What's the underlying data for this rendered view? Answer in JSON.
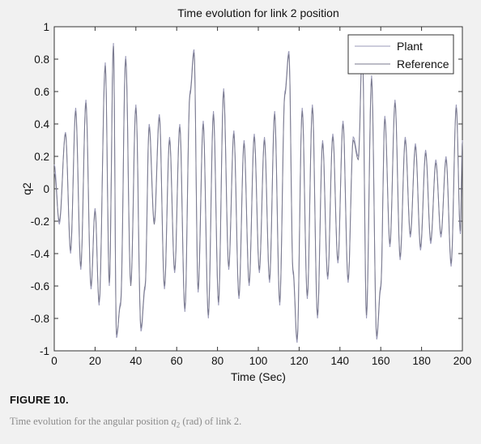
{
  "chart_data": {
    "type": "line",
    "title": "Time evolution for link 2 position",
    "xlabel": "Time (Sec)",
    "ylabel": "q2",
    "xlim": [
      0,
      200
    ],
    "ylim": [
      -1,
      1
    ],
    "xticks": [
      0,
      20,
      40,
      60,
      80,
      100,
      120,
      140,
      160,
      180,
      200
    ],
    "yticks": [
      -1,
      -0.8,
      -0.6,
      -0.4,
      -0.2,
      0,
      0.2,
      0.4,
      0.6,
      0.8,
      1
    ],
    "xtick_labels": [
      "0",
      "20",
      "40",
      "60",
      "80",
      "100",
      "120",
      "140",
      "160",
      "180",
      "200"
    ],
    "ytick_labels": [
      "-1",
      "-0.8",
      "-0.6",
      "-0.4",
      "-0.2",
      "0",
      "0.2",
      "0.4",
      "0.6",
      "0.8",
      "1"
    ],
    "grid": false,
    "legend_position": "top-right",
    "series": [
      {
        "name": "Plant",
        "color": "#9a9ab8",
        "x": [
          0,
          2.5,
          5.5,
          8,
          10.5,
          13,
          15.5,
          18,
          20,
          22,
          25,
          27,
          29,
          30.5,
          32.5,
          35,
          37.5,
          40,
          42.5,
          44.5,
          46.5,
          49,
          51.5,
          54,
          56.5,
          59,
          61.5,
          64,
          66.5,
          68.5,
          70.5,
          73,
          75.5,
          78,
          80.5,
          83,
          85.5,
          88,
          90.5,
          93,
          95.5,
          98,
          100.5,
          103,
          105.5,
          108,
          110.5,
          113,
          115,
          117,
          119,
          121.5,
          124,
          126.5,
          129,
          131.5,
          134,
          136.5,
          139,
          141.5,
          144,
          146.5,
          149,
          151,
          153,
          155.5,
          158,
          160,
          162,
          164.5,
          167,
          169.5,
          172,
          174.5,
          177,
          179.5,
          182,
          184.5,
          187,
          189.5,
          192,
          194.5,
          197,
          199,
          200
        ],
        "y": [
          0.15,
          -0.22,
          0.35,
          -0.4,
          0.5,
          -0.5,
          0.55,
          -0.62,
          -0.12,
          -0.72,
          0.78,
          -0.6,
          0.9,
          -0.92,
          -0.7,
          0.82,
          -0.58,
          0.52,
          -0.88,
          -0.62,
          0.4,
          -0.2,
          0.46,
          -0.62,
          0.32,
          -0.52,
          0.4,
          -0.76,
          0.6,
          0.86,
          -0.64,
          0.42,
          -0.8,
          0.48,
          -0.72,
          0.62,
          -0.5,
          0.36,
          -0.68,
          0.3,
          -0.6,
          0.34,
          -0.52,
          0.32,
          -0.58,
          0.48,
          -0.72,
          0.6,
          0.85,
          -0.52,
          -0.95,
          0.5,
          -0.68,
          0.52,
          -0.8,
          0.3,
          -0.56,
          0.34,
          -0.46,
          0.42,
          -0.58,
          0.32,
          0.2,
          0.88,
          -0.8,
          0.7,
          -0.93,
          -0.62,
          0.45,
          -0.36,
          0.55,
          -0.44,
          0.32,
          -0.3,
          0.28,
          -0.38,
          0.24,
          -0.34,
          0.18,
          -0.3,
          0.2,
          -0.48,
          0.52,
          -0.28,
          0.3
        ]
      },
      {
        "name": "Reference",
        "color": "#7a7a8e",
        "x": [
          0,
          2.5,
          5.5,
          8,
          10.5,
          13,
          15.5,
          18,
          20,
          22,
          25,
          27,
          29,
          30.5,
          32.5,
          35,
          37.5,
          40,
          42.5,
          44.5,
          46.5,
          49,
          51.5,
          54,
          56.5,
          59,
          61.5,
          64,
          66.5,
          68.5,
          70.5,
          73,
          75.5,
          78,
          80.5,
          83,
          85.5,
          88,
          90.5,
          93,
          95.5,
          98,
          100.5,
          103,
          105.5,
          108,
          110.5,
          113,
          115,
          117,
          119,
          121.5,
          124,
          126.5,
          129,
          131.5,
          134,
          136.5,
          139,
          141.5,
          144,
          146.5,
          149,
          151,
          153,
          155.5,
          158,
          160,
          162,
          164.5,
          167,
          169.5,
          172,
          174.5,
          177,
          179.5,
          182,
          184.5,
          187,
          189.5,
          192,
          194.5,
          197,
          199,
          200
        ],
        "y": [
          0.1,
          -0.2,
          0.34,
          -0.38,
          0.48,
          -0.48,
          0.53,
          -0.6,
          -0.14,
          -0.7,
          0.76,
          -0.58,
          0.88,
          -0.9,
          -0.72,
          0.8,
          -0.6,
          0.5,
          -0.86,
          -0.6,
          0.38,
          -0.22,
          0.44,
          -0.6,
          0.3,
          -0.5,
          0.38,
          -0.74,
          0.58,
          0.84,
          -0.62,
          0.4,
          -0.78,
          0.46,
          -0.7,
          0.6,
          -0.48,
          0.34,
          -0.66,
          0.28,
          -0.58,
          0.32,
          -0.5,
          0.3,
          -0.56,
          0.46,
          -0.7,
          0.58,
          0.83,
          -0.5,
          -0.93,
          0.48,
          -0.66,
          0.5,
          -0.78,
          0.28,
          -0.54,
          0.32,
          -0.44,
          0.4,
          -0.56,
          0.3,
          0.18,
          0.86,
          -0.78,
          0.68,
          -0.91,
          -0.6,
          0.43,
          -0.34,
          0.53,
          -0.42,
          0.3,
          -0.28,
          0.26,
          -0.36,
          0.22,
          -0.32,
          0.16,
          -0.28,
          0.18,
          -0.46,
          0.5,
          -0.26,
          0.28
        ]
      }
    ]
  },
  "caption": {
    "heading": "FIGURE 10.",
    "text_before": "Time evolution for the angular position ",
    "variable": "q",
    "subscript": "2",
    "text_after": " (rad) of link 2."
  }
}
